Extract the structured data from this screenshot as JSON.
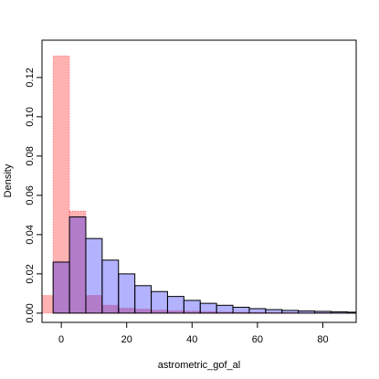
{
  "chart_data": {
    "type": "histogram",
    "x_label": "astrometric_gof_al",
    "y_label": "Density",
    "xlim": [
      -5.9,
      90.2
    ],
    "ylim": [
      -0.0047,
      0.139
    ],
    "xticks": [
      0,
      20,
      40,
      60,
      80
    ],
    "yticks": [
      {
        "value": 0,
        "label": "0.00"
      },
      {
        "value": 0.02,
        "label": "0.02"
      },
      {
        "value": 0.04,
        "label": "0.04"
      },
      {
        "value": 0.06,
        "label": "0.06"
      },
      {
        "value": 0.08,
        "label": "0.08"
      },
      {
        "value": 0.1,
        "label": "0.10"
      },
      {
        "value": 0.12,
        "label": "0.12"
      }
    ],
    "series": [
      {
        "color": "#ff0000",
        "bins": [
          -7.5,
          -2.5,
          2.5,
          7.5,
          12.5,
          17.5,
          22.5,
          27.5,
          32.5,
          37.5,
          42.5,
          47.5,
          52.5,
          57.5,
          62.5,
          67.5,
          72.5,
          77.5,
          82.5,
          87.5,
          92.5
        ],
        "values": [
          0.009,
          0.131,
          0.052,
          0.009,
          0.004,
          0.0025,
          0.002,
          0.0015,
          0.0012,
          0.001,
          0.0008,
          0.0006,
          0.0005,
          0.0004,
          0.0003,
          0.0003,
          0.0002,
          0.0002,
          0.0001,
          0.0001
        ]
      },
      {
        "color": "#0000ff",
        "bins": [
          -2.5,
          2.5,
          7.5,
          12.5,
          17.5,
          22.5,
          27.5,
          32.5,
          37.5,
          42.5,
          47.5,
          52.5,
          57.5,
          62.5,
          67.5,
          72.5,
          77.5,
          82.5,
          87.5,
          92.5
        ],
        "values": [
          0.026,
          0.049,
          0.038,
          0.027,
          0.02,
          0.014,
          0.011,
          0.0085,
          0.0065,
          0.005,
          0.004,
          0.003,
          0.0023,
          0.0018,
          0.0014,
          0.0011,
          0.0009,
          0.0007,
          0.0005
        ]
      }
    ]
  }
}
